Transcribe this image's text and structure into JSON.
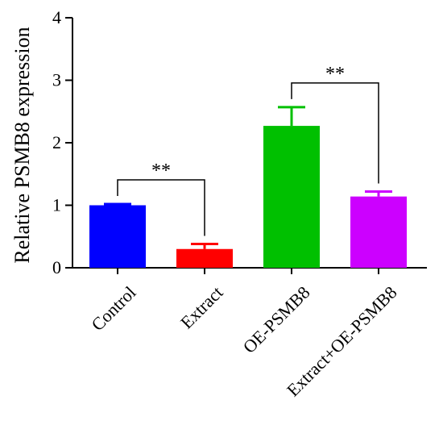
{
  "chart_data": {
    "type": "bar",
    "ylabel": "Relative PSMB8 expression",
    "xlabel": "",
    "ylim": [
      0,
      4
    ],
    "yticks": [
      "0",
      "1",
      "2",
      "3",
      "4"
    ],
    "categories": [
      "Control",
      "Extract",
      "OE-PSMB8",
      "Extract+OE-PSMB8"
    ],
    "values": [
      1.0,
      0.3,
      2.27,
      1.14
    ],
    "errors": [
      0.02,
      0.08,
      0.3,
      0.08
    ],
    "colors": [
      "#0000ff",
      "#ff0000",
      "#00c000",
      "#cc00ff"
    ],
    "grid": false,
    "legend": "none",
    "significance": [
      {
        "from": 0,
        "to": 1,
        "label": "**"
      },
      {
        "from": 2,
        "to": 3,
        "label": "**"
      }
    ]
  }
}
